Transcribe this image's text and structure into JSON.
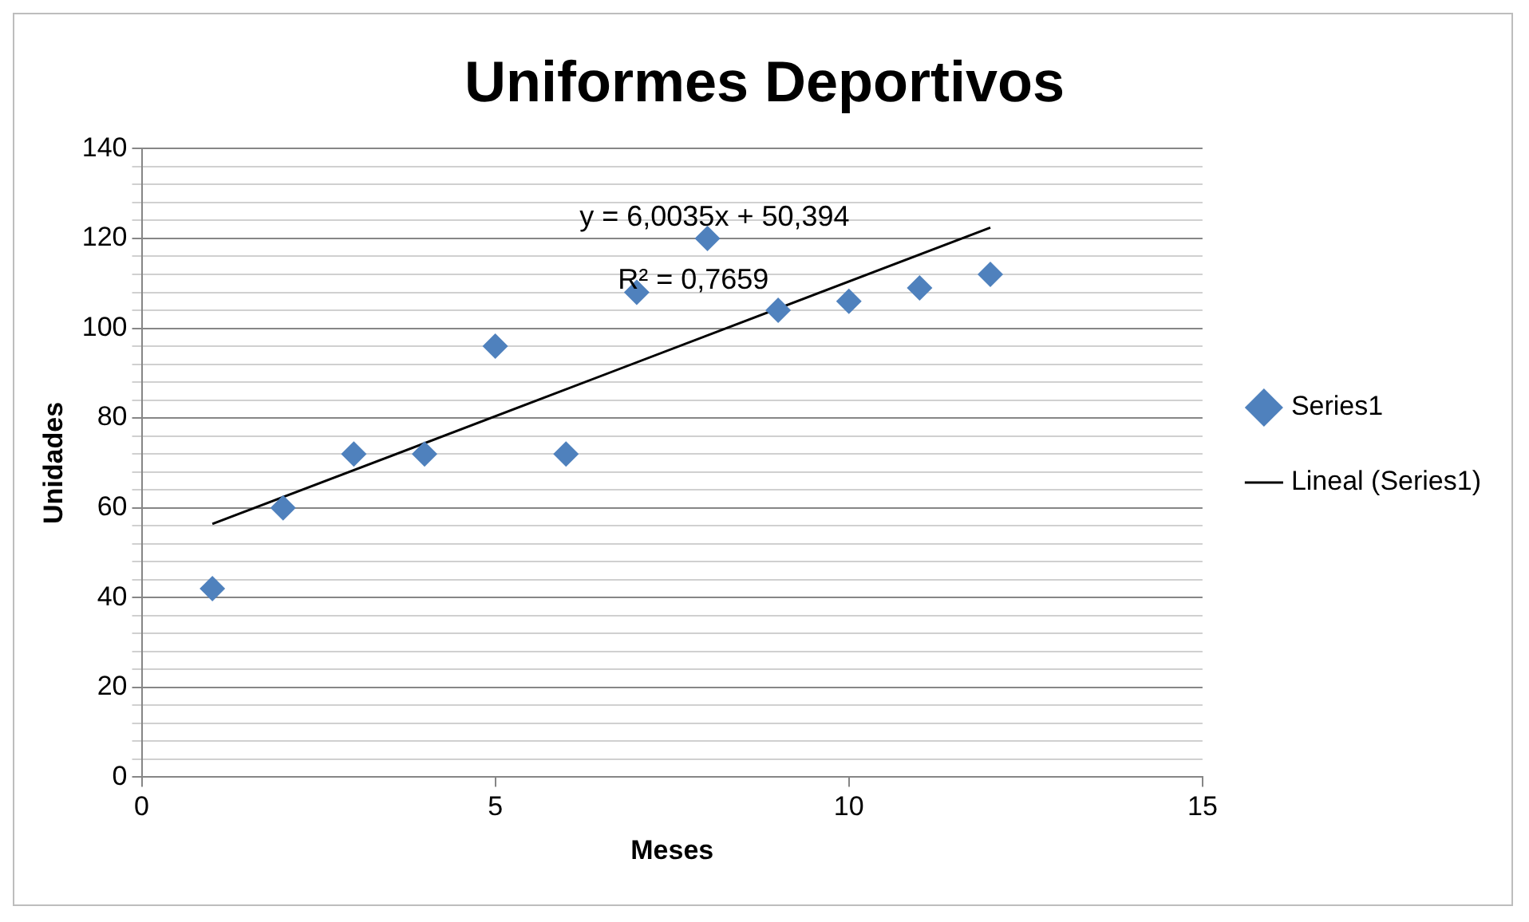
{
  "chart_data": {
    "type": "scatter",
    "title": "Uniformes Deportivos",
    "xlabel": "Meses",
    "ylabel": "Unidades",
    "series": [
      {
        "name": "Series1",
        "color": "#4f81bd",
        "x": [
          1,
          2,
          3,
          4,
          5,
          6,
          7,
          8,
          9,
          10,
          11,
          12
        ],
        "values": [
          42,
          60,
          72,
          72,
          96,
          72,
          108,
          120,
          104,
          106,
          109,
          112
        ],
        "marker": "diamond"
      },
      {
        "name": "Lineal (Series1)",
        "type": "line",
        "color": "#000000",
        "x": [
          1,
          12
        ],
        "values": [
          56.4,
          122.4
        ],
        "marker": "none"
      }
    ],
    "xlim": [
      0,
      15
    ],
    "xticks": [
      0,
      5,
      10,
      15
    ],
    "ylim": [
      0,
      140
    ],
    "yticks": [
      0,
      {
        "value": 4,
        "label": null
      },
      {
        "value": 8,
        "label": null
      },
      {
        "value": 12,
        "label": null
      },
      {
        "value": 16,
        "label": null
      },
      20,
      {
        "value": 24,
        "label": null
      },
      {
        "value": 28,
        "label": null
      },
      {
        "value": 32,
        "label": null
      },
      {
        "value": 36,
        "label": null
      },
      40,
      {
        "value": 44,
        "label": null
      },
      {
        "value": 48,
        "label": null
      },
      {
        "value": 52,
        "label": null
      },
      {
        "value": 56,
        "label": null
      },
      60,
      {
        "value": 64,
        "label": null
      },
      {
        "value": 68,
        "label": null
      },
      {
        "value": 72,
        "label": null
      },
      {
        "value": 76,
        "label": null
      },
      80,
      {
        "value": 84,
        "label": null
      },
      {
        "value": 88,
        "label": null
      },
      {
        "value": 92,
        "label": null
      },
      {
        "value": 96,
        "label": null
      },
      100,
      {
        "value": 104,
        "label": null
      },
      {
        "value": 108,
        "label": null
      },
      {
        "value": 112,
        "label": null
      },
      {
        "value": 116,
        "label": null
      },
      120,
      {
        "value": 124,
        "label": null
      },
      {
        "value": 128,
        "label": null
      },
      {
        "value": 132,
        "label": null
      },
      {
        "value": 136,
        "label": null
      },
      140
    ],
    "grid": "y",
    "legend": "right",
    "annotations": [
      "y = 6,0035x + 50,394",
      "R² = 0,7659"
    ]
  }
}
